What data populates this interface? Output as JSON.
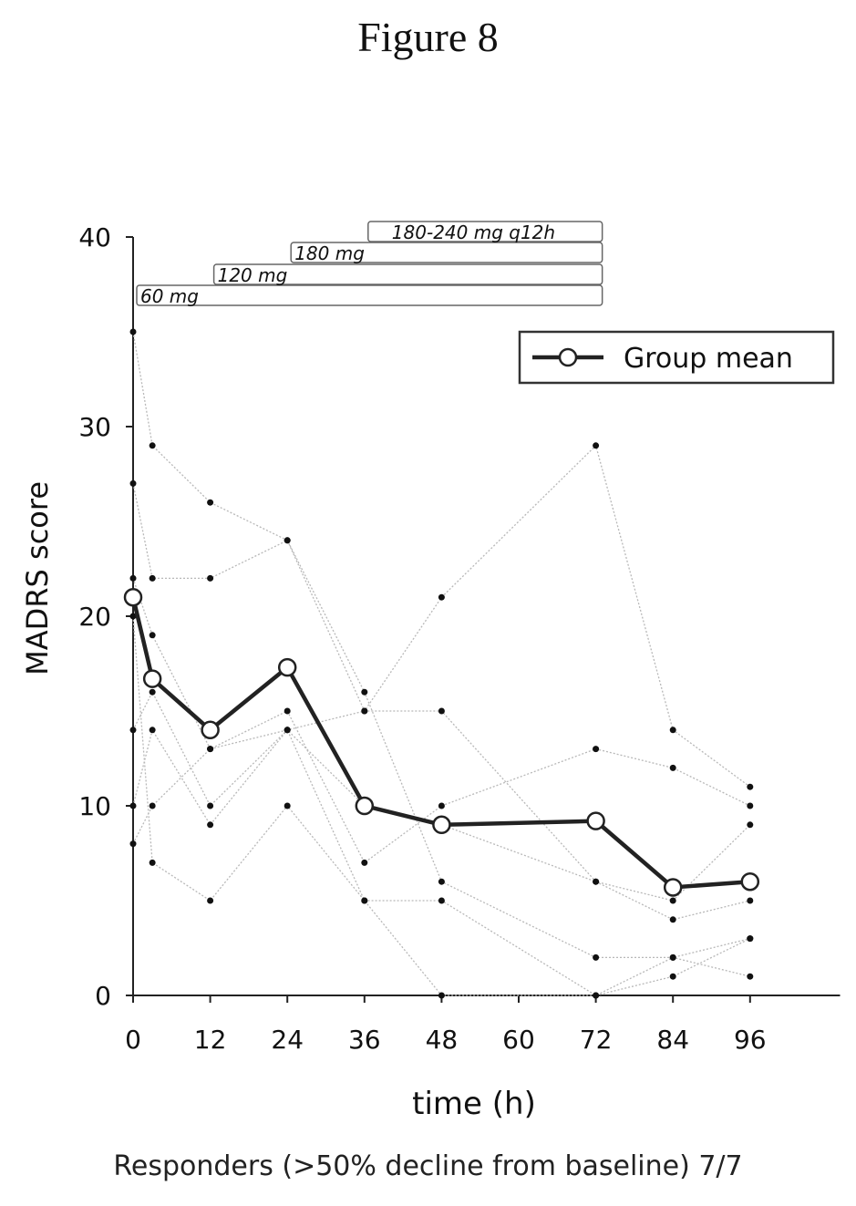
{
  "figure_title": "Figure 8",
  "footnote": "Responders (>50% decline from baseline) 7/7",
  "chart_data": {
    "type": "line",
    "xlabel": "time (h)",
    "ylabel": "MADRS score",
    "xlim": [
      0,
      110
    ],
    "ylim": [
      0,
      40
    ],
    "xticks": [
      0,
      12,
      24,
      36,
      48,
      60,
      72,
      84,
      96
    ],
    "yticks": [
      0,
      10,
      20,
      30,
      40
    ],
    "legend": {
      "position": "top-right",
      "label": "Group mean"
    },
    "dose_bars": [
      {
        "label": "60 mg",
        "start": 0,
        "end": 73
      },
      {
        "label": "120 mg",
        "start": 12,
        "end": 73
      },
      {
        "label": "180 mg",
        "start": 24,
        "end": 73
      },
      {
        "label": "180-240 mg q12h",
        "start": 36,
        "end": 73
      }
    ],
    "group_mean": {
      "name": "Group mean",
      "x": [
        0,
        3,
        12,
        24,
        36,
        48,
        72,
        84,
        96
      ],
      "y": [
        21,
        16.7,
        14,
        17.3,
        10,
        9,
        9.2,
        5.7,
        6
      ]
    },
    "individual_series": [
      {
        "x": [
          0,
          3,
          12,
          24,
          36,
          48,
          72,
          84,
          96
        ],
        "y": [
          35,
          29,
          26,
          24,
          16,
          6,
          2,
          2,
          3
        ]
      },
      {
        "x": [
          0,
          3,
          12,
          24,
          36,
          48,
          72,
          84,
          96
        ],
        "y": [
          27,
          22,
          22,
          24,
          15,
          21,
          29,
          14,
          11
        ]
      },
      {
        "x": [
          0,
          3,
          12,
          24,
          36,
          48,
          72,
          84,
          96
        ],
        "y": [
          22,
          19,
          13,
          15,
          7,
          10,
          13,
          12,
          10
        ]
      },
      {
        "x": [
          0,
          3,
          12,
          24,
          36,
          48,
          72,
          84,
          96
        ],
        "y": [
          14,
          16,
          10,
          14,
          15,
          15,
          6,
          5,
          9
        ]
      },
      {
        "x": [
          0,
          3,
          12,
          24,
          36,
          48,
          72,
          84,
          96
        ],
        "y": [
          10,
          14,
          9,
          14,
          10,
          9,
          6,
          4,
          5
        ]
      },
      {
        "x": [
          0,
          3,
          12,
          24,
          36,
          48,
          72,
          84,
          96
        ],
        "y": [
          8,
          10,
          13,
          14,
          5,
          5,
          0,
          1,
          3
        ]
      },
      {
        "x": [
          0,
          3,
          12,
          24,
          36,
          48,
          72,
          84,
          96
        ],
        "y": [
          20,
          7,
          5,
          10,
          5,
          0,
          0,
          2,
          1
        ]
      }
    ]
  }
}
